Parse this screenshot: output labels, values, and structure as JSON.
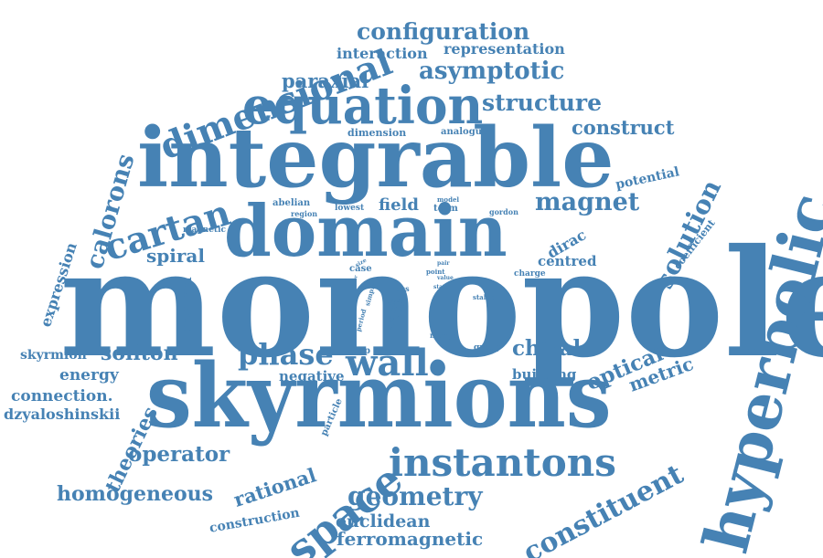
{
  "color": "#4682b4",
  "words": [
    "monopole",
    "skyrmions",
    "integrable",
    "hyperbolic",
    "domain",
    "equation",
    "dimensional",
    "space",
    "instantons",
    "calorons",
    "cartan",
    "solution",
    "configuration",
    "asymptotic",
    "structure",
    "constituent",
    "magnet",
    "wall",
    "phase",
    "geometry",
    "operator",
    "optical",
    "chiral",
    "theories",
    "homogeneous",
    "soliton",
    "ferromagnetic",
    "euclidean",
    "spiral",
    "paraxial",
    "interaction",
    "representation",
    "construct",
    "field",
    "rational",
    "metric",
    "expression",
    "connection.",
    "dzyaloshinskii",
    "energy",
    "potential",
    "skyrmion",
    "negative",
    "building",
    "dirac",
    "centred",
    "ground",
    "construction",
    "coefficient",
    "dimension",
    "analogue",
    "abelian",
    "region",
    "lowest",
    "model",
    "term",
    "gordon",
    "magnetic",
    "case",
    "pair",
    "mass",
    "type",
    "period",
    "simple",
    "point",
    "value",
    "state",
    "stable",
    "system",
    "factor",
    "moriya",
    "charge",
    "particle",
    "motion",
    "map",
    "group",
    "size",
    "order"
  ]
}
